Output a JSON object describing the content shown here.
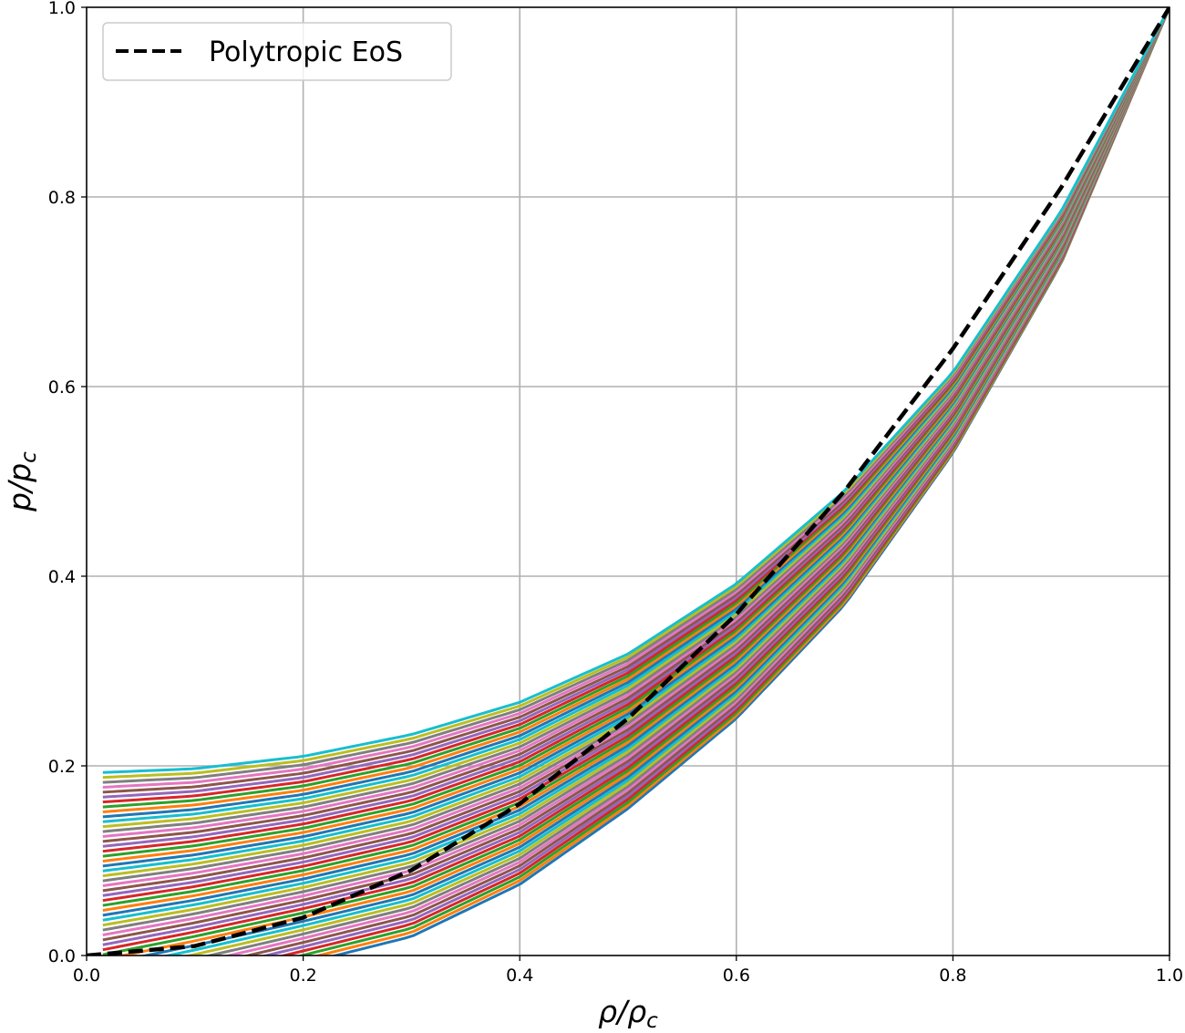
{
  "chart_data": {
    "type": "line",
    "title": "",
    "xlabel": {
      "base": "ρ/ρ",
      "sub": "c"
    },
    "ylabel": {
      "base": "p/p",
      "sub": "c"
    },
    "xlim": [
      0.0,
      1.0
    ],
    "ylim": [
      0.0,
      1.0
    ],
    "xticks": [
      "0.0",
      "0.2",
      "0.4",
      "0.6",
      "0.8",
      "1.0"
    ],
    "yticks": [
      "0.0",
      "0.2",
      "0.4",
      "0.6",
      "0.8",
      "1.0"
    ],
    "grid": true,
    "legend": {
      "placement": "top-left",
      "entries": [
        {
          "label": "Polytropic EoS",
          "style": "dashed",
          "color": "#000000"
        }
      ]
    },
    "reference_series": {
      "name": "Polytropic EoS",
      "color": "#000000",
      "style": "dashed",
      "x": [
        0.0,
        0.1,
        0.2,
        0.3,
        0.4,
        0.5,
        0.6,
        0.7,
        0.8,
        0.9,
        1.0
      ],
      "y": [
        0.0,
        0.01,
        0.04,
        0.09,
        0.16,
        0.25,
        0.36,
        0.49,
        0.64,
        0.81,
        1.0
      ]
    },
    "family": {
      "count": 50,
      "colors": [
        "#1f77b4",
        "#ff7f0e",
        "#2ca02c",
        "#d62728",
        "#9467bd",
        "#8c564b",
        "#e377c2",
        "#7f7f7f",
        "#bcbd22",
        "#17becf"
      ],
      "x_start": 0.015,
      "x_end": 1.0,
      "notes_shown": "family of curves from near-zero base (crossing y=0 near x=0.23) up to base 0.193, all converging at (1.0, 1.0)",
      "first_curve": {
        "x": [
          0.23,
          0.3,
          0.4,
          0.5,
          0.6,
          0.7,
          0.8,
          0.9,
          1.0
        ],
        "y": [
          0.0,
          0.02,
          0.075,
          0.155,
          0.25,
          0.37,
          0.53,
          0.73,
          1.0
        ]
      },
      "last_curve": {
        "x": [
          0.015,
          0.1,
          0.2,
          0.3,
          0.4,
          0.5,
          0.6,
          0.7,
          0.8,
          0.9,
          1.0
        ],
        "y": [
          0.193,
          0.197,
          0.21,
          0.233,
          0.267,
          0.318,
          0.392,
          0.49,
          0.615,
          0.785,
          1.0
        ]
      }
    }
  }
}
